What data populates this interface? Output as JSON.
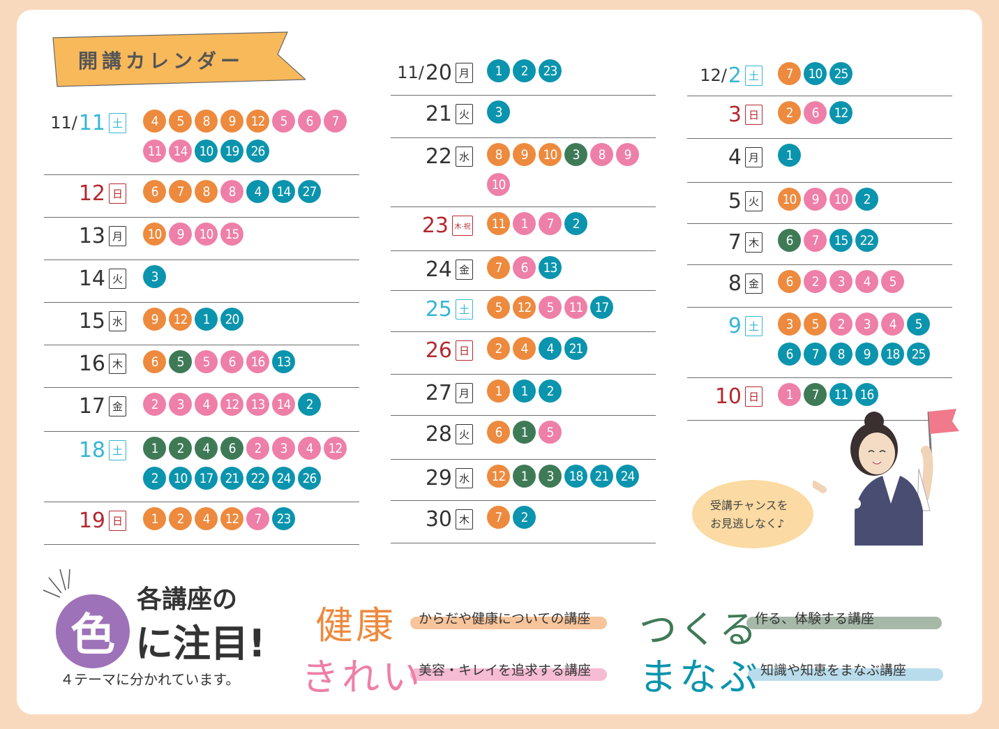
{
  "title": "開講カレンダー",
  "colors": {
    "orange": "#ed8a3e",
    "pink": "#ee7fa8",
    "green": "#3f7a57",
    "blue": "#0b94ad",
    "saturday": "#35b6d4",
    "sunday": "#b5282e"
  },
  "columns": [
    [
      {
        "month": "11/",
        "day": "11",
        "wd": "土",
        "type": "sat",
        "dots": [
          [
            "4",
            "o"
          ],
          [
            "5",
            "o"
          ],
          [
            "8",
            "o"
          ],
          [
            "9",
            "o"
          ],
          [
            "12",
            "o"
          ],
          [
            "5",
            "p"
          ],
          [
            "6",
            "p"
          ],
          [
            "7",
            "p"
          ],
          [
            "11",
            "p"
          ],
          [
            "14",
            "p"
          ],
          [
            "10",
            "b"
          ],
          [
            "19",
            "b"
          ],
          [
            "26",
            "b"
          ]
        ]
      },
      {
        "month": "",
        "day": "12",
        "wd": "日",
        "type": "sun",
        "dots": [
          [
            "6",
            "o"
          ],
          [
            "7",
            "o"
          ],
          [
            "8",
            "o"
          ],
          [
            "8",
            "p"
          ],
          [
            "4",
            "b"
          ],
          [
            "14",
            "b"
          ],
          [
            "27",
            "b"
          ]
        ]
      },
      {
        "month": "",
        "day": "13",
        "wd": "月",
        "type": "",
        "dots": [
          [
            "10",
            "o"
          ],
          [
            "9",
            "p"
          ],
          [
            "10",
            "p"
          ],
          [
            "15",
            "p"
          ]
        ]
      },
      {
        "month": "",
        "day": "14",
        "wd": "火",
        "type": "",
        "dots": [
          [
            "3",
            "b"
          ]
        ]
      },
      {
        "month": "",
        "day": "15",
        "wd": "水",
        "type": "",
        "dots": [
          [
            "9",
            "o"
          ],
          [
            "12",
            "o"
          ],
          [
            "1",
            "b"
          ],
          [
            "20",
            "b"
          ]
        ]
      },
      {
        "month": "",
        "day": "16",
        "wd": "木",
        "type": "",
        "dots": [
          [
            "6",
            "o"
          ],
          [
            "5",
            "g"
          ],
          [
            "5",
            "p"
          ],
          [
            "6",
            "p"
          ],
          [
            "16",
            "p"
          ],
          [
            "13",
            "b"
          ]
        ]
      },
      {
        "month": "",
        "day": "17",
        "wd": "金",
        "type": "",
        "dots": [
          [
            "2",
            "p"
          ],
          [
            "3",
            "p"
          ],
          [
            "4",
            "p"
          ],
          [
            "12",
            "p"
          ],
          [
            "13",
            "p"
          ],
          [
            "14",
            "p"
          ],
          [
            "2",
            "b"
          ]
        ]
      },
      {
        "month": "",
        "day": "18",
        "wd": "土",
        "type": "sat",
        "dots": [
          [
            "1",
            "g"
          ],
          [
            "2",
            "g"
          ],
          [
            "4",
            "g"
          ],
          [
            "6",
            "g"
          ],
          [
            "2",
            "p"
          ],
          [
            "3",
            "p"
          ],
          [
            "4",
            "p"
          ],
          [
            "12",
            "p"
          ],
          [
            "2",
            "b"
          ],
          [
            "10",
            "b"
          ],
          [
            "17",
            "b"
          ],
          [
            "21",
            "b"
          ],
          [
            "22",
            "b"
          ],
          [
            "24",
            "b"
          ],
          [
            "26",
            "b"
          ]
        ]
      },
      {
        "month": "",
        "day": "19",
        "wd": "日",
        "type": "sun",
        "dots": [
          [
            "1",
            "o"
          ],
          [
            "2",
            "o"
          ],
          [
            "4",
            "o"
          ],
          [
            "12",
            "o"
          ],
          [
            "7",
            "p"
          ],
          [
            "23",
            "b"
          ]
        ]
      }
    ],
    [
      {
        "month": "11/",
        "day": "20",
        "wd": "月",
        "type": "",
        "dots": [
          [
            "1",
            "b"
          ],
          [
            "2",
            "b"
          ],
          [
            "23",
            "b"
          ]
        ]
      },
      {
        "month": "",
        "day": "21",
        "wd": "火",
        "type": "",
        "dots": [
          [
            "3",
            "b"
          ]
        ]
      },
      {
        "month": "",
        "day": "22",
        "wd": "水",
        "type": "",
        "dots": [
          [
            "8",
            "o"
          ],
          [
            "9",
            "o"
          ],
          [
            "10",
            "o"
          ],
          [
            "3",
            "g"
          ],
          [
            "8",
            "p"
          ],
          [
            "9",
            "p"
          ],
          [
            "10",
            "p"
          ]
        ]
      },
      {
        "month": "",
        "day": "23",
        "wd": "木·祝",
        "type": "sun",
        "dots": [
          [
            "11",
            "o"
          ],
          [
            "1",
            "p"
          ],
          [
            "7",
            "p"
          ],
          [
            "2",
            "b"
          ]
        ]
      },
      {
        "month": "",
        "day": "24",
        "wd": "金",
        "type": "",
        "dots": [
          [
            "7",
            "o"
          ],
          [
            "6",
            "p"
          ],
          [
            "13",
            "b"
          ]
        ]
      },
      {
        "month": "",
        "day": "25",
        "wd": "土",
        "type": "sat",
        "dots": [
          [
            "5",
            "o"
          ],
          [
            "12",
            "o"
          ],
          [
            "5",
            "p"
          ],
          [
            "11",
            "p"
          ],
          [
            "17",
            "b"
          ]
        ]
      },
      {
        "month": "",
        "day": "26",
        "wd": "日",
        "type": "sun",
        "dots": [
          [
            "2",
            "o"
          ],
          [
            "4",
            "o"
          ],
          [
            "4",
            "b"
          ],
          [
            "21",
            "b"
          ]
        ]
      },
      {
        "month": "",
        "day": "27",
        "wd": "月",
        "type": "",
        "dots": [
          [
            "1",
            "o"
          ],
          [
            "1",
            "b"
          ],
          [
            "2",
            "b"
          ]
        ]
      },
      {
        "month": "",
        "day": "28",
        "wd": "火",
        "type": "",
        "dots": [
          [
            "6",
            "o"
          ],
          [
            "1",
            "g"
          ],
          [
            "5",
            "p"
          ]
        ]
      },
      {
        "month": "",
        "day": "29",
        "wd": "水",
        "type": "",
        "dots": [
          [
            "12",
            "o"
          ],
          [
            "1",
            "g"
          ],
          [
            "3",
            "g"
          ],
          [
            "18",
            "b"
          ],
          [
            "21",
            "b"
          ],
          [
            "24",
            "b"
          ]
        ]
      },
      {
        "month": "",
        "day": "30",
        "wd": "木",
        "type": "",
        "dots": [
          [
            "7",
            "o"
          ],
          [
            "2",
            "b"
          ]
        ]
      }
    ],
    [
      {
        "month": "12/",
        "day": "2",
        "wd": "土",
        "type": "sat",
        "dots": [
          [
            "7",
            "o"
          ],
          [
            "10",
            "b"
          ],
          [
            "25",
            "b"
          ]
        ]
      },
      {
        "month": "",
        "day": "3",
        "wd": "日",
        "type": "sun",
        "dots": [
          [
            "2",
            "o"
          ],
          [
            "6",
            "p"
          ],
          [
            "12",
            "b"
          ]
        ]
      },
      {
        "month": "",
        "day": "4",
        "wd": "月",
        "type": "",
        "dots": [
          [
            "1",
            "b"
          ]
        ]
      },
      {
        "month": "",
        "day": "5",
        "wd": "火",
        "type": "",
        "dots": [
          [
            "10",
            "o"
          ],
          [
            "9",
            "p"
          ],
          [
            "10",
            "p"
          ],
          [
            "2",
            "b"
          ]
        ]
      },
      {
        "month": "",
        "day": "7",
        "wd": "木",
        "type": "",
        "dots": [
          [
            "6",
            "g"
          ],
          [
            "7",
            "p"
          ],
          [
            "15",
            "b"
          ],
          [
            "22",
            "b"
          ]
        ]
      },
      {
        "month": "",
        "day": "8",
        "wd": "金",
        "type": "",
        "dots": [
          [
            "6",
            "o"
          ],
          [
            "2",
            "p"
          ],
          [
            "3",
            "p"
          ],
          [
            "4",
            "p"
          ],
          [
            "5",
            "p"
          ]
        ]
      },
      {
        "month": "",
        "day": "9",
        "wd": "土",
        "type": "sat",
        "dots": [
          [
            "3",
            "o"
          ],
          [
            "5",
            "o"
          ],
          [
            "2",
            "p"
          ],
          [
            "3",
            "p"
          ],
          [
            "4",
            "p"
          ],
          [
            "5",
            "b"
          ],
          [
            "6",
            "b"
          ],
          [
            "7",
            "b"
          ],
          [
            "8",
            "b"
          ],
          [
            "9",
            "b"
          ],
          [
            "18",
            "b"
          ],
          [
            "25",
            "b"
          ]
        ]
      },
      {
        "month": "",
        "day": "10",
        "wd": "日",
        "type": "sun",
        "dots": [
          [
            "1",
            "p"
          ],
          [
            "7",
            "g"
          ],
          [
            "11",
            "b"
          ],
          [
            "16",
            "b"
          ]
        ]
      }
    ]
  ],
  "legend": {
    "iro": "色",
    "head1": "各講座の",
    "head2": "に注目!",
    "sub": "４テーマに分かれています。",
    "themes": [
      {
        "word": "健康",
        "desc": "からだや健康についての講座",
        "color": "#ed8a3e"
      },
      {
        "word": "きれい",
        "desc": "美容・キレイを追求する講座",
        "color": "#ee7fa8"
      },
      {
        "word": "つくる",
        "desc": "作る、体験する講座",
        "color": "#3f7a57"
      },
      {
        "word": "まなぶ",
        "desc": "知識や知恵をまなぶ講座",
        "color": "#0b94ad"
      }
    ]
  },
  "bubble": {
    "line1": "受講チャンスを",
    "line2": "お見逃しなく♪"
  }
}
